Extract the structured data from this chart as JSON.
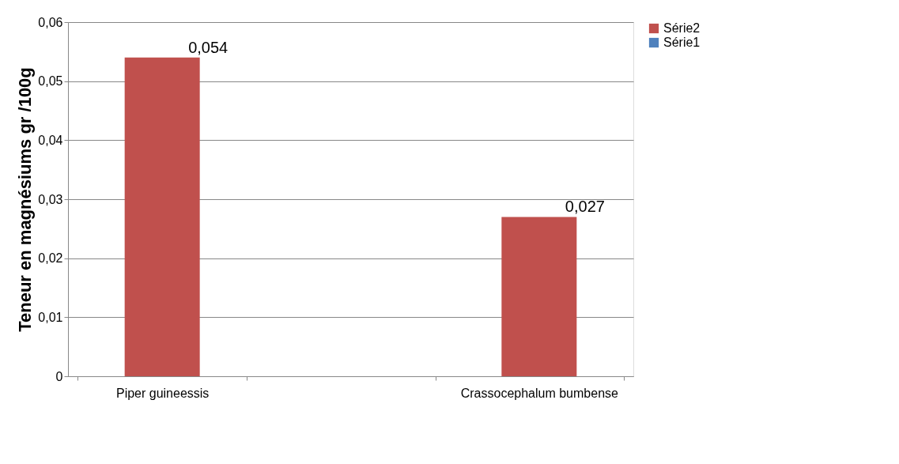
{
  "chart_data": {
    "type": "bar",
    "ylabel": "Teneur en  magnésiums gr /100g",
    "categories": [
      "Piper guineessis",
      null,
      "Crassocephalum bumbense"
    ],
    "series": [
      {
        "name": "Série2",
        "color": "#c0504d",
        "values": [
          0.054,
          null,
          0.027
        ],
        "value_labels": [
          "0,054",
          null,
          "0,027"
        ]
      },
      {
        "name": "Série1",
        "color": "#4f81bd",
        "values": [
          null,
          null,
          null
        ]
      }
    ],
    "ylim": [
      0,
      0.06
    ],
    "yticks": [
      {
        "value": 0,
        "label": "0"
      },
      {
        "value": 0.01,
        "label": "0,01"
      },
      {
        "value": 0.02,
        "label": "0,02"
      },
      {
        "value": 0.03,
        "label": "0,03"
      },
      {
        "value": 0.04,
        "label": "0,04"
      },
      {
        "value": 0.05,
        "label": "0,05"
      },
      {
        "value": 0.06,
        "label": "0,06"
      }
    ],
    "grid": "y",
    "legend": "right"
  }
}
